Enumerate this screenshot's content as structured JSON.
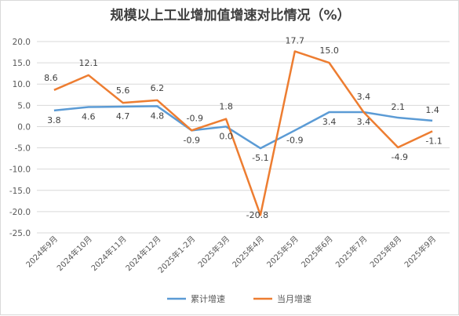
{
  "chart_data": {
    "type": "line",
    "title": "规模以上工业增加值增速对比情况（%）",
    "categories": [
      "2024年9月",
      "2024年10月",
      "2024年11月",
      "2024年12月",
      "2025年1-2月",
      "2025年3月",
      "2025年4月",
      "2025年5月",
      "2025年6月",
      "2025年7月",
      "2025年8月",
      "2025年9月"
    ],
    "series": [
      {
        "name": "累计增速",
        "color": "#5b9bd5",
        "values": [
          3.8,
          4.6,
          4.7,
          4.8,
          -0.9,
          0.0,
          -5.1,
          -0.9,
          3.4,
          3.4,
          2.1,
          1.4
        ],
        "labels": [
          "3.8",
          "4.6",
          "4.7",
          "4.8",
          "-0.9",
          "0.0",
          "-5.1",
          "-0.9",
          "3.4",
          "3.4",
          "2.1",
          "1.4"
        ]
      },
      {
        "name": "当月增速",
        "color": "#ed7d31",
        "values": [
          8.6,
          12.1,
          5.6,
          6.2,
          -0.9,
          1.8,
          -20.8,
          17.7,
          15.0,
          3.4,
          -4.9,
          -1.1
        ],
        "labels": [
          "8.6",
          "12.1",
          "5.6",
          "6.2",
          "-0.9",
          "1.8",
          "-20.8",
          "17.7",
          "15.0",
          "3.4",
          "-4.9",
          "-1.1"
        ]
      }
    ],
    "yticks": [
      "20.0",
      "15.0",
      "10.0",
      "5.0",
      "0.0",
      "-5.0",
      "-10.0",
      "-15.0",
      "-20.0",
      "-25.0"
    ],
    "ylim": [
      -25,
      20
    ],
    "grid": true,
    "legend": "bottom"
  }
}
